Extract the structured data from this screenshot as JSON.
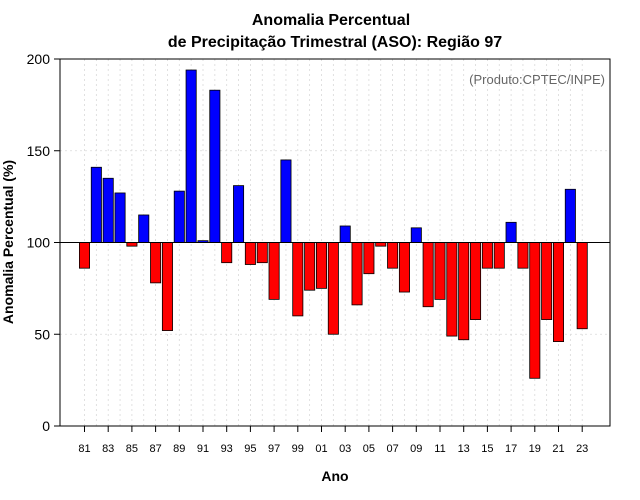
{
  "chart_data": {
    "type": "bar",
    "title": "Anomalia Percentual",
    "subtitle": "de Precipitação Trimestral (ASO): Região 97",
    "xlabel": "Ano",
    "ylabel": "Anomalia Percentual (%)",
    "credit": "(Produto:CPTEC/INPE)",
    "baseline": 100,
    "ylim": [
      0,
      200
    ],
    "yticks": [
      "0",
      "50",
      "100",
      "150",
      "200"
    ],
    "grid": true,
    "above_color": "#0000ff",
    "below_color": "#ff0000",
    "categories": [
      "81",
      "82",
      "83",
      "84",
      "85",
      "86",
      "87",
      "88",
      "89",
      "90",
      "91",
      "92",
      "93",
      "94",
      "95",
      "96",
      "97",
      "98",
      "99",
      "00",
      "01",
      "02",
      "03",
      "04",
      "05",
      "06",
      "07",
      "08",
      "09",
      "10",
      "11",
      "12",
      "13",
      "14",
      "15",
      "16",
      "17",
      "18",
      "19",
      "20",
      "21",
      "22",
      "23"
    ],
    "xtick_labels": [
      "81",
      "83",
      "85",
      "87",
      "89",
      "91",
      "93",
      "95",
      "97",
      "99",
      "01",
      "03",
      "05",
      "07",
      "09",
      "11",
      "13",
      "15",
      "17",
      "19",
      "21",
      "23"
    ],
    "values": [
      86,
      141,
      135,
      127,
      98,
      115,
      78,
      52,
      128,
      194,
      101,
      183,
      89,
      131,
      88,
      89,
      69,
      145,
      60,
      74,
      75,
      50,
      109,
      66,
      83,
      98,
      86,
      73,
      108,
      65,
      69,
      49,
      47,
      58,
      86,
      86,
      111,
      86,
      26,
      58,
      46,
      129,
      53
    ]
  }
}
